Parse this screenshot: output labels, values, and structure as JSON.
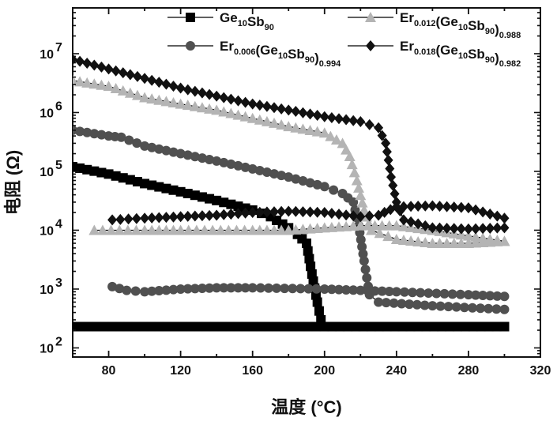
{
  "chart_data": {
    "type": "line",
    "xlabel": "温度 (°C)",
    "ylabel": "电阻 (Ω)",
    "xlim": [
      60,
      320
    ],
    "ylim": [
      70,
      60000000
    ],
    "y_scale": "log",
    "x_ticks": [
      "80",
      "120",
      "160",
      "200",
      "240",
      "280",
      "320"
    ],
    "y_ticks": [
      {
        "base": "10",
        "exp": "2",
        "value": 100
      },
      {
        "base": "10",
        "exp": "3",
        "value": 1000
      },
      {
        "base": "10",
        "exp": "4",
        "value": 10000
      },
      {
        "base": "10",
        "exp": "5",
        "value": 100000
      },
      {
        "base": "10",
        "exp": "6",
        "value": 1000000
      },
      {
        "base": "10",
        "exp": "7",
        "value": 10000000
      }
    ],
    "legend_position": "top",
    "series": [
      {
        "name": "Ge10Sb90",
        "label_parts": [
          [
            "Ge",
            "n"
          ],
          [
            "10",
            "sub"
          ],
          [
            "Sb",
            "n"
          ],
          [
            "90",
            "sub"
          ]
        ],
        "marker": "square",
        "color": "#000000",
        "heating": [
          [
            60,
            120000
          ],
          [
            80,
            90000
          ],
          [
            100,
            62000
          ],
          [
            120,
            45000
          ],
          [
            140,
            32000
          ],
          [
            160,
            22000
          ],
          [
            170,
            17000
          ],
          [
            180,
            11000
          ],
          [
            185,
            8500
          ],
          [
            190,
            6000
          ],
          [
            193,
            1800
          ],
          [
            196,
            600
          ],
          [
            198,
            300
          ],
          [
            200,
            230
          ],
          [
            300,
            230
          ]
        ],
        "cooling": [
          [
            300,
            230
          ],
          [
            60,
            230
          ]
        ]
      },
      {
        "name": "Er0.006(Ge10Sb90)0.994",
        "label_parts": [
          [
            "Er",
            "n"
          ],
          [
            "0.006",
            "sub"
          ],
          [
            "(Ge",
            "n"
          ],
          [
            "10",
            "sub"
          ],
          [
            "Sb",
            "n"
          ],
          [
            "90",
            "sub"
          ],
          [
            ")",
            "n"
          ],
          [
            "0.994",
            "sub"
          ]
        ],
        "marker": "circle",
        "color": "#505050",
        "heating": [
          [
            60,
            500000
          ],
          [
            80,
            400000
          ],
          [
            87,
            380000
          ],
          [
            100,
            270000
          ],
          [
            120,
            200000
          ],
          [
            140,
            150000
          ],
          [
            160,
            110000
          ],
          [
            180,
            80000
          ],
          [
            200,
            55000
          ],
          [
            210,
            42000
          ],
          [
            216,
            30000
          ],
          [
            219,
            12000
          ],
          [
            222,
            3000
          ],
          [
            225,
            800
          ],
          [
            230,
            600
          ],
          [
            260,
            520
          ],
          [
            300,
            450
          ]
        ],
        "cooling": [
          [
            300,
            750
          ],
          [
            280,
            800
          ],
          [
            240,
            900
          ],
          [
            220,
            950
          ],
          [
            200,
            1000
          ],
          [
            160,
            1050
          ],
          [
            140,
            1050
          ],
          [
            120,
            1000
          ],
          [
            100,
            900
          ],
          [
            90,
            950
          ],
          [
            82,
            1100
          ]
        ]
      },
      {
        "name": "Er0.012(Ge10Sb90)0.988",
        "label_parts": [
          [
            "Er",
            "n"
          ],
          [
            "0.012",
            "sub"
          ],
          [
            "(Ge",
            "n"
          ],
          [
            "10",
            "sub"
          ],
          [
            "Sb",
            "n"
          ],
          [
            "90",
            "sub"
          ],
          [
            ")",
            "n"
          ],
          [
            "0.988",
            "sub"
          ]
        ],
        "marker": "triangle",
        "color": "#b4b4b4",
        "heating": [
          [
            60,
            3500000
          ],
          [
            80,
            2800000
          ],
          [
            100,
            1800000
          ],
          [
            120,
            1400000
          ],
          [
            140,
            1100000
          ],
          [
            160,
            800000
          ],
          [
            180,
            580000
          ],
          [
            200,
            450000
          ],
          [
            210,
            300000
          ],
          [
            214,
            180000
          ],
          [
            218,
            70000
          ],
          [
            222,
            22000
          ],
          [
            226,
            10000
          ],
          [
            240,
            7000
          ],
          [
            260,
            6000
          ],
          [
            280,
            6000
          ],
          [
            300,
            6500
          ]
        ],
        "cooling": [
          [
            300,
            6500
          ],
          [
            280,
            8000
          ],
          [
            260,
            10000
          ],
          [
            240,
            12000
          ],
          [
            220,
            12000
          ],
          [
            200,
            11000
          ],
          [
            180,
            10000
          ],
          [
            160,
            10000
          ],
          [
            120,
            10000
          ],
          [
            100,
            10000
          ],
          [
            72,
            10000
          ]
        ]
      },
      {
        "name": "Er0.018(Ge10Sb90)0.982",
        "label_parts": [
          [
            "Er",
            "n"
          ],
          [
            "0.018",
            "sub"
          ],
          [
            "(Ge",
            "n"
          ],
          [
            "10",
            "sub"
          ],
          [
            "Sb",
            "n"
          ],
          [
            "90",
            "sub"
          ],
          [
            ")",
            "n"
          ],
          [
            "0.982",
            "sub"
          ]
        ],
        "marker": "diamond",
        "color": "#111111",
        "heating": [
          [
            60,
            8000000
          ],
          [
            80,
            5500000
          ],
          [
            100,
            3800000
          ],
          [
            120,
            2600000
          ],
          [
            140,
            1900000
          ],
          [
            160,
            1400000
          ],
          [
            180,
            1100000
          ],
          [
            200,
            850000
          ],
          [
            220,
            700000
          ],
          [
            230,
            550000
          ],
          [
            234,
            300000
          ],
          [
            237,
            80000
          ],
          [
            240,
            30000
          ],
          [
            244,
            15000
          ],
          [
            260,
            11000
          ],
          [
            280,
            10500
          ],
          [
            300,
            11000
          ]
        ],
        "cooling": [
          [
            300,
            16000
          ],
          [
            280,
            24000
          ],
          [
            260,
            26000
          ],
          [
            240,
            25000
          ],
          [
            230,
            18000
          ],
          [
            220,
            17000
          ],
          [
            200,
            20000
          ],
          [
            180,
            21000
          ],
          [
            160,
            20000
          ],
          [
            140,
            18000
          ],
          [
            120,
            17000
          ],
          [
            100,
            16000
          ],
          [
            82,
            15000
          ]
        ]
      }
    ]
  }
}
